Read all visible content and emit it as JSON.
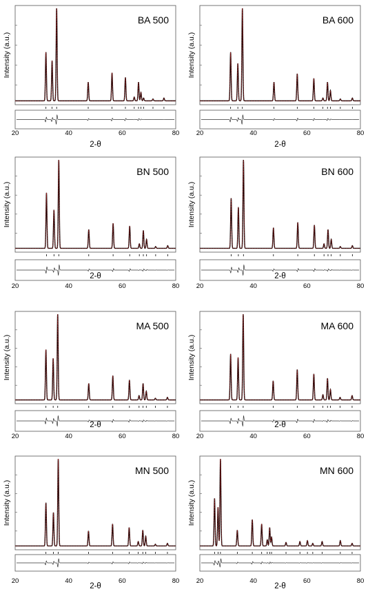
{
  "figure": {
    "ylabel": "Intensity (a.u.)",
    "xlabel": "2-θ",
    "xlim": [
      20,
      80
    ],
    "xticks": [
      "20",
      "40",
      "60",
      "80"
    ],
    "colors": {
      "calc": "#e03030",
      "obs": "#000000",
      "diff": "#333333",
      "frame": "#555555"
    }
  },
  "chart_data": [
    {
      "type": "line",
      "title": "BA 500",
      "xlabel": "2-θ",
      "ylabel": "Intensity (a.u.)",
      "xlim": [
        20,
        80
      ],
      "peaks": [
        {
          "x": 31.5,
          "y": 0.52
        },
        {
          "x": 33.8,
          "y": 0.43
        },
        {
          "x": 35.5,
          "y": 1.0
        },
        {
          "x": 47.3,
          "y": 0.2
        },
        {
          "x": 56.2,
          "y": 0.3
        },
        {
          "x": 61.2,
          "y": 0.25
        },
        {
          "x": 64.5,
          "y": 0.04
        },
        {
          "x": 66.1,
          "y": 0.2
        },
        {
          "x": 67.0,
          "y": 0.09
        },
        {
          "x": 68.0,
          "y": 0.03
        },
        {
          "x": 71.5,
          "y": 0.02
        },
        {
          "x": 75.6,
          "y": 0.03
        }
      ]
    },
    {
      "type": "line",
      "title": "BA 600",
      "xlabel": "2-θ",
      "ylabel": "Intensity (a.u.)",
      "xlim": [
        20,
        80
      ],
      "peaks": [
        {
          "x": 31.5,
          "y": 0.52
        },
        {
          "x": 34.2,
          "y": 0.4
        },
        {
          "x": 35.9,
          "y": 1.0
        },
        {
          "x": 47.7,
          "y": 0.2
        },
        {
          "x": 56.4,
          "y": 0.29
        },
        {
          "x": 62.6,
          "y": 0.24
        },
        {
          "x": 66.0,
          "y": 0.03
        },
        {
          "x": 67.7,
          "y": 0.2
        },
        {
          "x": 68.8,
          "y": 0.11
        },
        {
          "x": 72.5,
          "y": 0.02
        },
        {
          "x": 77.0,
          "y": 0.03
        }
      ]
    },
    {
      "type": "line",
      "title": "BN 500",
      "xlabel": "2-θ",
      "ylabel": "Intensity (a.u.)",
      "xlim": [
        20,
        80
      ],
      "peaks": [
        {
          "x": 31.7,
          "y": 0.62
        },
        {
          "x": 34.5,
          "y": 0.43
        },
        {
          "x": 36.3,
          "y": 1.0
        },
        {
          "x": 47.5,
          "y": 0.21
        },
        {
          "x": 56.6,
          "y": 0.28
        },
        {
          "x": 62.8,
          "y": 0.25
        },
        {
          "x": 66.4,
          "y": 0.05
        },
        {
          "x": 67.9,
          "y": 0.2
        },
        {
          "x": 69.1,
          "y": 0.1
        },
        {
          "x": 72.5,
          "y": 0.02
        },
        {
          "x": 77.0,
          "y": 0.03
        }
      ]
    },
    {
      "type": "line",
      "title": "BN 600",
      "xlabel": "2-θ",
      "ylabel": "Intensity (a.u.)",
      "xlim": [
        20,
        80
      ],
      "peaks": [
        {
          "x": 31.7,
          "y": 0.56
        },
        {
          "x": 34.4,
          "y": 0.46
        },
        {
          "x": 36.3,
          "y": 1.0
        },
        {
          "x": 47.5,
          "y": 0.23
        },
        {
          "x": 56.6,
          "y": 0.29
        },
        {
          "x": 62.8,
          "y": 0.26
        },
        {
          "x": 66.4,
          "y": 0.05
        },
        {
          "x": 67.9,
          "y": 0.21
        },
        {
          "x": 69.1,
          "y": 0.1
        },
        {
          "x": 72.5,
          "y": 0.02
        },
        {
          "x": 77.0,
          "y": 0.03
        }
      ]
    },
    {
      "type": "line",
      "title": "MA 500",
      "xlabel": "2-θ",
      "ylabel": "Intensity (a.u.)",
      "xlim": [
        20,
        80
      ],
      "peaks": [
        {
          "x": 31.5,
          "y": 0.58
        },
        {
          "x": 34.2,
          "y": 0.48
        },
        {
          "x": 35.9,
          "y": 1.0
        },
        {
          "x": 47.5,
          "y": 0.19
        },
        {
          "x": 56.5,
          "y": 0.28
        },
        {
          "x": 62.7,
          "y": 0.23
        },
        {
          "x": 66.3,
          "y": 0.05
        },
        {
          "x": 67.8,
          "y": 0.19
        },
        {
          "x": 69.0,
          "y": 0.1
        },
        {
          "x": 72.4,
          "y": 0.02
        },
        {
          "x": 76.9,
          "y": 0.03
        }
      ]
    },
    {
      "type": "line",
      "title": "MA 600",
      "xlabel": "2-θ",
      "ylabel": "Intensity (a.u.)",
      "xlim": [
        20,
        80
      ],
      "peaks": [
        {
          "x": 31.5,
          "y": 0.53
        },
        {
          "x": 34.3,
          "y": 0.49
        },
        {
          "x": 36.2,
          "y": 1.0
        },
        {
          "x": 47.4,
          "y": 0.22
        },
        {
          "x": 56.4,
          "y": 0.35
        },
        {
          "x": 62.6,
          "y": 0.3
        },
        {
          "x": 66.0,
          "y": 0.06
        },
        {
          "x": 67.7,
          "y": 0.25
        },
        {
          "x": 68.8,
          "y": 0.12
        },
        {
          "x": 72.4,
          "y": 0.03
        },
        {
          "x": 76.9,
          "y": 0.05
        }
      ]
    },
    {
      "type": "line",
      "title": "MN 500",
      "xlabel": "2-θ",
      "ylabel": "Intensity (a.u.)",
      "xlim": [
        20,
        80
      ],
      "peaks": [
        {
          "x": 31.5,
          "y": 0.49
        },
        {
          "x": 34.3,
          "y": 0.38
        },
        {
          "x": 36.1,
          "y": 1.0
        },
        {
          "x": 47.4,
          "y": 0.17
        },
        {
          "x": 56.4,
          "y": 0.25
        },
        {
          "x": 62.6,
          "y": 0.21
        },
        {
          "x": 66.0,
          "y": 0.05
        },
        {
          "x": 67.7,
          "y": 0.18
        },
        {
          "x": 68.8,
          "y": 0.11
        },
        {
          "x": 72.4,
          "y": 0.02
        },
        {
          "x": 76.9,
          "y": 0.03
        }
      ]
    },
    {
      "type": "line",
      "title": "MN 600",
      "xlabel": "2-θ",
      "ylabel": "Intensity (a.u.)",
      "xlim": [
        20,
        80
      ],
      "peaks": [
        {
          "x": 25.5,
          "y": 0.54
        },
        {
          "x": 26.8,
          "y": 0.44
        },
        {
          "x": 27.7,
          "y": 1.0
        },
        {
          "x": 34.0,
          "y": 0.18
        },
        {
          "x": 39.6,
          "y": 0.3
        },
        {
          "x": 43.1,
          "y": 0.25
        },
        {
          "x": 45.2,
          "y": 0.07
        },
        {
          "x": 46.1,
          "y": 0.21
        },
        {
          "x": 46.8,
          "y": 0.1
        },
        {
          "x": 52.2,
          "y": 0.04
        },
        {
          "x": 57.4,
          "y": 0.05
        },
        {
          "x": 60.2,
          "y": 0.06
        },
        {
          "x": 62.2,
          "y": 0.03
        },
        {
          "x": 65.7,
          "y": 0.05
        },
        {
          "x": 72.5,
          "y": 0.06
        },
        {
          "x": 76.9,
          "y": 0.03
        }
      ]
    }
  ]
}
